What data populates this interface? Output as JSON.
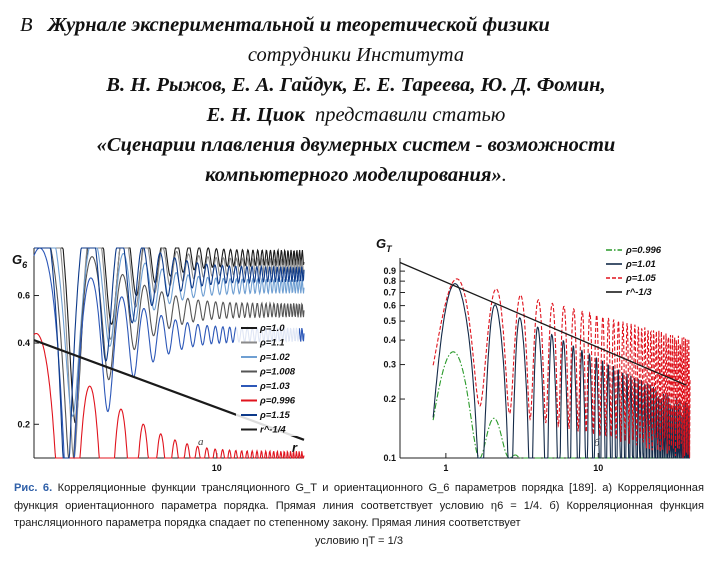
{
  "header": {
    "prefix": "В",
    "journal": "Журнале экспериментальной и теоретической физики",
    "staff": "сотрудники Института",
    "authors": "В. Н. Рыжов, Е. А. Гайдук, Е. Е. Тареева, Ю. Д. Фомин,",
    "author_last": "Е. Н. Циок",
    "presented": "представили статью",
    "title_line1": "«Сценарии плавления двумерных систем - возможности",
    "title_line2": "компьютерного моделирования»",
    "title_end": "."
  },
  "colors": {
    "black": "#1a1a1a",
    "gray": "#8a8a8a",
    "lightblue": "#6f9fd2",
    "darkgray": "#555555",
    "blue": "#2d58b8",
    "red": "#e0141e",
    "darkblue": "#0d3a8a",
    "green": "#2a9a2a",
    "navy": "#132a48"
  },
  "chart_data": [
    {
      "type": "line",
      "panel_label": "а",
      "ylabel": "G6",
      "ylabel_base": "G",
      "ylabel_sub": "6",
      "xlabel": "r",
      "xscale": "log",
      "yscale": "log",
      "xlim": [
        1.0,
        30
      ],
      "ylim": [
        0.15,
        0.9
      ],
      "y_ticks": [
        "0.6",
        "0.4",
        "0.2"
      ],
      "y_tick_values": [
        0.6,
        0.4,
        0.2
      ],
      "x_ticks": [
        "10"
      ],
      "x_tick_values": [
        10
      ],
      "legend_position": "right",
      "series": [
        {
          "name": "ρ=1.0",
          "color": "black",
          "plateau": 0.83
        },
        {
          "name": "ρ=1.1",
          "color": "gray",
          "plateau": 0.77
        },
        {
          "name": "ρ=1.02",
          "color": "lightblue",
          "plateau": 0.65
        },
        {
          "name": "ρ=1.008",
          "color": "darkgray",
          "plateau": 0.53
        },
        {
          "name": "ρ=1.03",
          "color": "blue",
          "plateau": 0.43
        },
        {
          "name": "ρ=0.996",
          "color": "red",
          "plateau": 0.18
        },
        {
          "name": "ρ=1.15",
          "color": "darkblue",
          "plateau": 0.72
        },
        {
          "name": "r^-1/4",
          "color": "black",
          "type": "power",
          "exponent": -0.25,
          "prefactor": 0.41
        }
      ]
    },
    {
      "type": "line",
      "panel_label": "б",
      "ylabel": "GT",
      "ylabel_base": "G",
      "ylabel_sub": "T",
      "xlabel": "r",
      "xscale": "log",
      "yscale": "log",
      "xlim": [
        0.5,
        40
      ],
      "ylim": [
        0.1,
        1.05
      ],
      "y_ticks": [
        "0.9",
        "0.8",
        "0.7",
        "0.6",
        "0.5",
        "0.4",
        "0.3",
        "0.2",
        "0.1"
      ],
      "y_tick_values": [
        0.9,
        0.8,
        0.7,
        0.6,
        0.5,
        0.4,
        0.3,
        0.2,
        0.1
      ],
      "x_ticks": [
        "1",
        "10"
      ],
      "x_tick_values": [
        1,
        10
      ],
      "legend_position": "top-right",
      "series": [
        {
          "name": "ρ=0.996",
          "color": "green",
          "style": "dash-dot"
        },
        {
          "name": "ρ=1.01",
          "color": "navy",
          "style": "solid"
        },
        {
          "name": "ρ=1.05",
          "color": "red",
          "style": "dashed"
        },
        {
          "name": "r^-1/3",
          "color": "black",
          "type": "power",
          "exponent": -0.3333,
          "prefactor": 0.79
        }
      ]
    }
  ],
  "caption": {
    "fig_label": "Рис. 6.",
    "text": "Корреляционные функции трансляционного G_T и ориентационного G_6 параметров порядка [189]. а) Корреляционная функция ориентационного параметра порядка. Прямая линия соответствует условию η6 = 1/4. б) Корреляционная функция трансляционного параметра порядка спадает по степенному закону. Прямая линия соответствует",
    "text_last": "условию ηT = 1/3"
  }
}
